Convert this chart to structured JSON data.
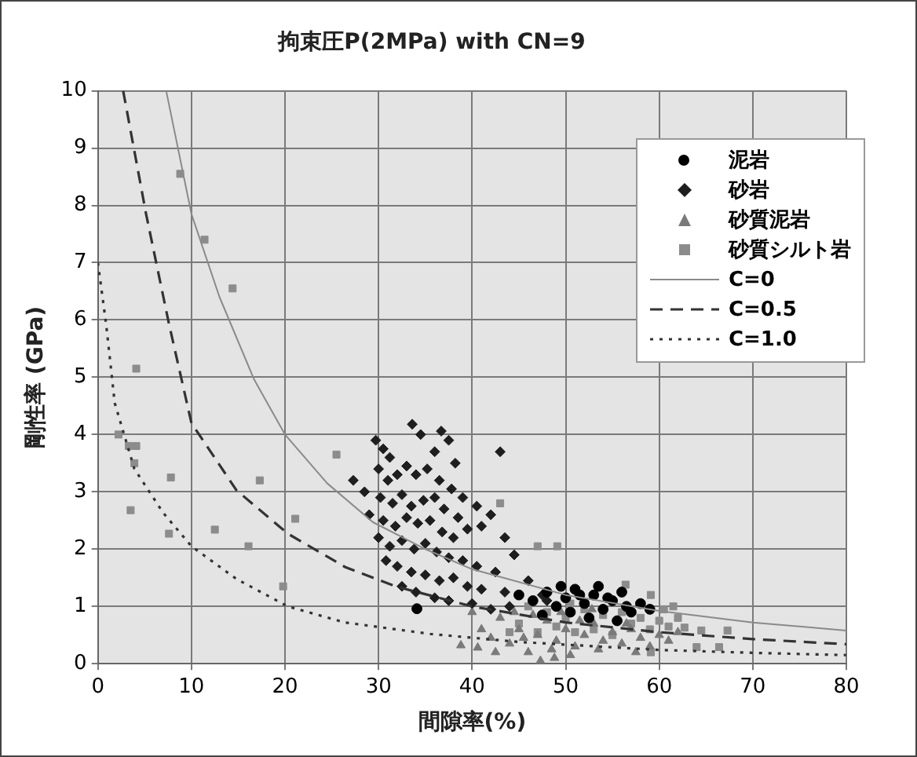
{
  "chart_data": {
    "type": "scatter",
    "title": "拘束圧P(2MPa) with CN=9",
    "xlabel": "間隙率(%)",
    "ylabel": "剛性率 (GPa)",
    "xlim": [
      0,
      80
    ],
    "xticks": [
      0,
      10,
      20,
      30,
      40,
      50,
      60,
      70,
      80
    ],
    "ylim": [
      0,
      10
    ],
    "yticks": [
      0,
      1,
      2,
      3,
      4,
      5,
      6,
      7,
      8,
      9,
      10
    ],
    "grid": true,
    "legend": "top right",
    "series": [
      {
        "name": "泥岩",
        "color": "#000000",
        "marker": "circle",
        "x": [
          34.1,
          45,
          46.5,
          48,
          49,
          50,
          51,
          52,
          53,
          54,
          55,
          56,
          57,
          58,
          47.5,
          50.5,
          52.5,
          55.5,
          53.5,
          49.5,
          51.5,
          54.5,
          56.5,
          59
        ],
        "values": [
          0.96,
          1.2,
          1.1,
          1.25,
          1.0,
          1.15,
          1.3,
          1.05,
          1.2,
          0.95,
          1.1,
          1.25,
          0.9,
          1.05,
          0.85,
          0.9,
          0.8,
          0.75,
          1.35,
          1.35,
          1.2,
          1.15,
          1.0,
          0.95
        ]
      },
      {
        "name": "砂岩",
        "color": "#1e1e1e",
        "marker": "diamond",
        "x": [
          29.7,
          30.5,
          31.2,
          33.6,
          34.5,
          36.7,
          37.5,
          36.0,
          38.2,
          43.0,
          27.3,
          28.5,
          30.0,
          31.0,
          32.0,
          33.0,
          34.0,
          35.2,
          36.5,
          37.8,
          39.0,
          40.5,
          42.0,
          30.2,
          31.5,
          32.5,
          33.5,
          34.8,
          36.0,
          37.0,
          38.5,
          41.0,
          43.5,
          29.0,
          30.5,
          31.8,
          33.0,
          34.2,
          35.5,
          36.8,
          38.0,
          39.5,
          44.5,
          30.0,
          31.2,
          32.5,
          33.8,
          35.0,
          36.2,
          37.5,
          39.0,
          40.5,
          42.5,
          46.0,
          30.8,
          32.0,
          33.5,
          35.0,
          36.5,
          38.0,
          39.5,
          41.0,
          43.5,
          47.5,
          32.5,
          34.0,
          36.0,
          37.5,
          40.0,
          42.0,
          44.0,
          48.0
        ],
        "values": [
          3.9,
          3.75,
          3.6,
          4.18,
          4.0,
          4.06,
          3.9,
          3.7,
          3.5,
          3.7,
          3.2,
          3.0,
          3.4,
          3.2,
          3.3,
          3.45,
          3.3,
          3.4,
          3.2,
          3.05,
          2.9,
          2.75,
          2.6,
          2.9,
          2.8,
          2.95,
          2.75,
          2.85,
          2.9,
          2.7,
          2.55,
          2.4,
          2.2,
          2.6,
          2.5,
          2.4,
          2.55,
          2.45,
          2.5,
          2.3,
          2.2,
          2.35,
          1.9,
          2.2,
          2.05,
          2.15,
          2.0,
          2.1,
          1.95,
          1.85,
          1.8,
          1.7,
          1.6,
          1.45,
          1.8,
          1.7,
          1.6,
          1.55,
          1.45,
          1.5,
          1.35,
          1.3,
          1.25,
          1.2,
          1.35,
          1.25,
          1.15,
          1.1,
          1.05,
          0.95,
          1.0,
          1.1
        ]
      },
      {
        "name": "砂質泥岩",
        "color": "#7a7a7a",
        "marker": "triangle",
        "x": [
          38.8,
          40.6,
          41,
          42,
          43,
          44,
          45,
          46,
          47.3,
          48.8,
          47,
          48,
          49,
          50,
          51,
          52,
          53,
          54,
          55,
          56,
          57,
          58,
          59,
          60,
          61,
          62,
          44.5,
          46.5,
          49.5,
          51.5,
          53.5,
          55.5,
          57.5,
          50.5,
          45.5,
          42.5,
          40,
          52.8,
          48.5,
          56.5
        ],
        "values": [
          0.32,
          0.28,
          0.6,
          0.45,
          0.8,
          0.35,
          0.6,
          0.2,
          0.05,
          0.1,
          0.5,
          0.75,
          0.4,
          0.6,
          0.3,
          0.5,
          0.7,
          0.4,
          0.55,
          0.35,
          0.6,
          0.45,
          0.3,
          0.5,
          0.4,
          0.55,
          0.9,
          0.85,
          0.9,
          0.75,
          0.25,
          null,
          0.2,
          0.15,
          0.45,
          0.2,
          0.9,
          0.95,
          0.25,
          0.7
        ]
      },
      {
        "name": "砂質シルト岩",
        "color": "#8c8c8c",
        "marker": "square",
        "x": [
          2.2,
          3.3,
          4.1,
          3.9,
          3.5,
          4.1,
          7.6,
          7.8,
          8.8,
          11.4,
          12.5,
          14.4,
          16.1,
          17.3,
          19.8,
          21.1,
          25.5,
          43.0,
          47.0,
          49.1,
          56.4,
          59.1,
          62.7,
          64.5,
          67.3,
          66.4,
          64,
          59.1,
          45,
          46,
          47,
          48,
          49,
          50,
          51,
          52,
          53,
          54,
          55,
          56,
          57,
          58,
          59,
          60,
          61,
          60.5,
          61.5,
          50.5,
          47.5,
          44,
          62
        ],
        "values": [
          4.0,
          3.8,
          3.8,
          3.5,
          2.68,
          5.15,
          2.27,
          3.25,
          8.55,
          7.4,
          2.34,
          6.55,
          2.05,
          3.2,
          1.35,
          2.53,
          3.65,
          2.8,
          2.05,
          2.05,
          1.38,
          1.2,
          0.63,
          0.58,
          0.58,
          0.29,
          0.29,
          0.2,
          0.7,
          1.0,
          0.55,
          0.9,
          0.65,
          0.8,
          0.55,
          0.95,
          0.6,
          0.85,
          0.5,
          0.9,
          0.7,
          0.8,
          0.6,
          0.75,
          0.65,
          0.95,
          1.0,
          1.05,
          null,
          0.55,
          0.8
        ]
      },
      {
        "name": "C=0",
        "type": "line",
        "color": "#8a8a8a",
        "marker": "none",
        "line_style": "solid",
        "x": [
          7.3,
          10,
          13,
          16.7,
          20,
          24.5,
          29.4,
          35,
          40,
          50,
          60,
          70,
          80
        ],
        "values": [
          10,
          7.85,
          6.4,
          4.96,
          4.0,
          3.15,
          2.47,
          2.0,
          1.65,
          1.2,
          0.92,
          0.72,
          0.58
        ]
      },
      {
        "name": "C=0.5",
        "type": "line",
        "color": "#333333",
        "marker": "none",
        "line_style": "dashed",
        "x": [
          2.7,
          5.15,
          7.6,
          10,
          14.8,
          20.3,
          26.4,
          31.8,
          40,
          50,
          60,
          70,
          80
        ],
        "values": [
          10,
          7.85,
          5.93,
          4.2,
          3.03,
          2.27,
          1.69,
          1.35,
          1.0,
          0.72,
          0.55,
          0.43,
          0.34
        ]
      },
      {
        "name": "C=1.0",
        "type": "line",
        "color": "#333333",
        "marker": "none",
        "line_style": "dotted",
        "x": [
          0,
          0.9,
          1.8,
          3.9,
          7,
          10,
          14.8,
          20.3,
          26.4,
          35.5,
          45,
          60,
          70,
          80
        ],
        "values": [
          7,
          5.9,
          4.55,
          3.4,
          2.63,
          2.05,
          1.48,
          1.0,
          0.72,
          0.52,
          0.38,
          0.24,
          0.19,
          0.15
        ]
      }
    ]
  }
}
